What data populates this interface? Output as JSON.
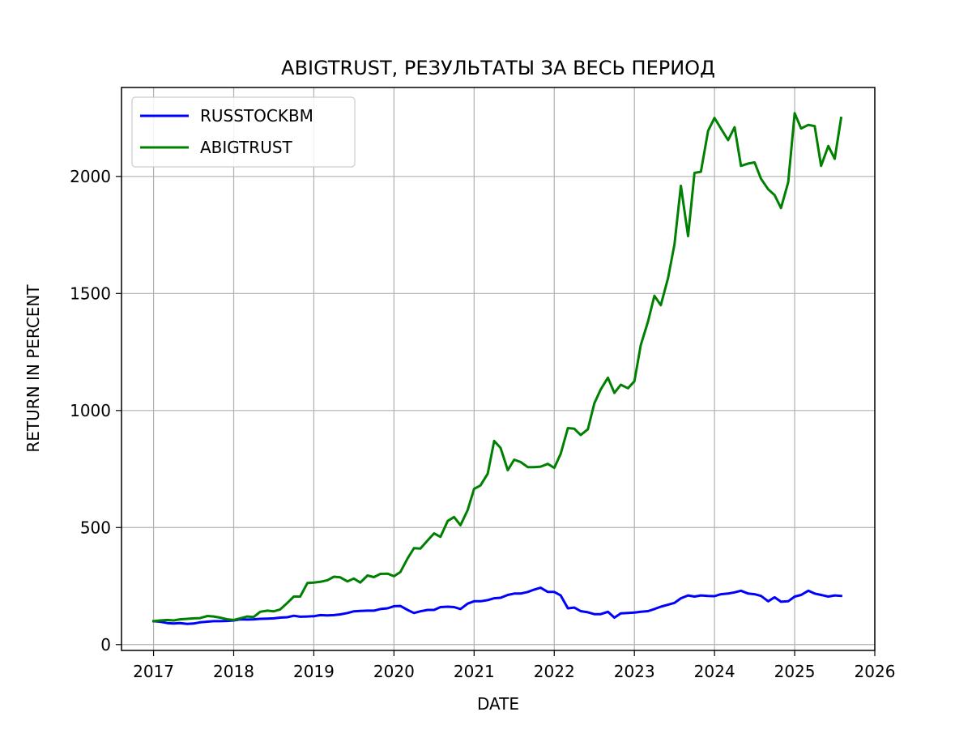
{
  "chart_data": {
    "type": "line",
    "title": "ABIGTRUST, РЕЗУЛЬТАТЫ ЗА ВЕСЬ ПЕРИОД",
    "xlabel": "DATE",
    "ylabel": "RETURN IN PERCENT",
    "xlim": [
      2016.6,
      2026.0
    ],
    "ylim": [
      -25,
      2380
    ],
    "xticks": [
      2017,
      2018,
      2019,
      2020,
      2021,
      2022,
      2023,
      2024,
      2025,
      2026
    ],
    "xtick_labels": [
      "2017",
      "2018",
      "2019",
      "2020",
      "2021",
      "2022",
      "2023",
      "2024",
      "2025",
      "2026"
    ],
    "yticks": [
      0,
      500,
      1000,
      1500,
      2000
    ],
    "ytick_labels": [
      "0",
      "500",
      "1000",
      "1500",
      "2000"
    ],
    "grid": true,
    "legend_position": "top-left",
    "series": [
      {
        "name": "RUSSTOCKBM",
        "color": "#0000ff",
        "points": [
          [
            2017.0,
            100
          ],
          [
            2017.08,
            98
          ],
          [
            2017.17,
            92
          ],
          [
            2017.25,
            90
          ],
          [
            2017.33,
            92
          ],
          [
            2017.42,
            88
          ],
          [
            2017.5,
            90
          ],
          [
            2017.58,
            95
          ],
          [
            2017.67,
            98
          ],
          [
            2017.75,
            100
          ],
          [
            2017.83,
            100
          ],
          [
            2017.92,
            101
          ],
          [
            2018.0,
            103
          ],
          [
            2018.08,
            108
          ],
          [
            2018.17,
            107
          ],
          [
            2018.25,
            108
          ],
          [
            2018.33,
            110
          ],
          [
            2018.42,
            111
          ],
          [
            2018.5,
            112
          ],
          [
            2018.58,
            115
          ],
          [
            2018.67,
            117
          ],
          [
            2018.75,
            123
          ],
          [
            2018.83,
            119
          ],
          [
            2018.92,
            120
          ],
          [
            2019.0,
            121
          ],
          [
            2019.08,
            126
          ],
          [
            2019.17,
            125
          ],
          [
            2019.25,
            126
          ],
          [
            2019.33,
            129
          ],
          [
            2019.42,
            135
          ],
          [
            2019.5,
            142
          ],
          [
            2019.58,
            144
          ],
          [
            2019.67,
            145
          ],
          [
            2019.75,
            145
          ],
          [
            2019.83,
            152
          ],
          [
            2019.92,
            155
          ],
          [
            2020.0,
            164
          ],
          [
            2020.08,
            165
          ],
          [
            2020.17,
            148
          ],
          [
            2020.25,
            135
          ],
          [
            2020.33,
            142
          ],
          [
            2020.42,
            148
          ],
          [
            2020.5,
            148
          ],
          [
            2020.58,
            160
          ],
          [
            2020.67,
            162
          ],
          [
            2020.75,
            160
          ],
          [
            2020.83,
            152
          ],
          [
            2020.92,
            175
          ],
          [
            2021.0,
            185
          ],
          [
            2021.08,
            185
          ],
          [
            2021.17,
            190
          ],
          [
            2021.25,
            198
          ],
          [
            2021.33,
            200
          ],
          [
            2021.42,
            212
          ],
          [
            2021.5,
            218
          ],
          [
            2021.58,
            218
          ],
          [
            2021.67,
            225
          ],
          [
            2021.75,
            235
          ],
          [
            2021.83,
            243
          ],
          [
            2021.92,
            225
          ],
          [
            2022.0,
            225
          ],
          [
            2022.08,
            210
          ],
          [
            2022.17,
            155
          ],
          [
            2022.25,
            158
          ],
          [
            2022.33,
            143
          ],
          [
            2022.42,
            138
          ],
          [
            2022.5,
            130
          ],
          [
            2022.58,
            130
          ],
          [
            2022.67,
            140
          ],
          [
            2022.75,
            115
          ],
          [
            2022.83,
            133
          ],
          [
            2022.92,
            135
          ],
          [
            2023.0,
            137
          ],
          [
            2023.08,
            140
          ],
          [
            2023.17,
            143
          ],
          [
            2023.25,
            152
          ],
          [
            2023.33,
            162
          ],
          [
            2023.42,
            170
          ],
          [
            2023.5,
            178
          ],
          [
            2023.58,
            198
          ],
          [
            2023.67,
            210
          ],
          [
            2023.75,
            205
          ],
          [
            2023.83,
            210
          ],
          [
            2023.92,
            208
          ],
          [
            2024.0,
            207
          ],
          [
            2024.08,
            215
          ],
          [
            2024.17,
            218
          ],
          [
            2024.25,
            223
          ],
          [
            2024.33,
            230
          ],
          [
            2024.42,
            218
          ],
          [
            2024.5,
            215
          ],
          [
            2024.58,
            208
          ],
          [
            2024.67,
            185
          ],
          [
            2024.75,
            202
          ],
          [
            2024.83,
            183
          ],
          [
            2024.92,
            185
          ],
          [
            2025.0,
            205
          ],
          [
            2025.08,
            212
          ],
          [
            2025.17,
            230
          ],
          [
            2025.25,
            218
          ],
          [
            2025.33,
            212
          ],
          [
            2025.42,
            205
          ],
          [
            2025.5,
            210
          ],
          [
            2025.58,
            208
          ]
        ]
      },
      {
        "name": "ABIGTRUST",
        "color": "#008000",
        "points": [
          [
            2017.0,
            100
          ],
          [
            2017.08,
            103
          ],
          [
            2017.17,
            105
          ],
          [
            2017.25,
            103
          ],
          [
            2017.33,
            108
          ],
          [
            2017.42,
            110
          ],
          [
            2017.5,
            112
          ],
          [
            2017.58,
            113
          ],
          [
            2017.67,
            122
          ],
          [
            2017.75,
            120
          ],
          [
            2017.83,
            115
          ],
          [
            2017.92,
            108
          ],
          [
            2018.0,
            105
          ],
          [
            2018.08,
            112
          ],
          [
            2018.17,
            120
          ],
          [
            2018.25,
            118
          ],
          [
            2018.33,
            140
          ],
          [
            2018.42,
            145
          ],
          [
            2018.5,
            142
          ],
          [
            2018.58,
            150
          ],
          [
            2018.67,
            178
          ],
          [
            2018.75,
            205
          ],
          [
            2018.83,
            205
          ],
          [
            2018.92,
            263
          ],
          [
            2019.0,
            265
          ],
          [
            2019.08,
            268
          ],
          [
            2019.17,
            275
          ],
          [
            2019.25,
            290
          ],
          [
            2019.33,
            287
          ],
          [
            2019.42,
            270
          ],
          [
            2019.5,
            282
          ],
          [
            2019.58,
            265
          ],
          [
            2019.67,
            295
          ],
          [
            2019.75,
            288
          ],
          [
            2019.83,
            302
          ],
          [
            2019.92,
            303
          ],
          [
            2020.0,
            292
          ],
          [
            2020.08,
            310
          ],
          [
            2020.17,
            368
          ],
          [
            2020.25,
            412
          ],
          [
            2020.33,
            410
          ],
          [
            2020.42,
            445
          ],
          [
            2020.5,
            475
          ],
          [
            2020.58,
            460
          ],
          [
            2020.67,
            528
          ],
          [
            2020.75,
            545
          ],
          [
            2020.83,
            510
          ],
          [
            2020.92,
            575
          ],
          [
            2021.0,
            665
          ],
          [
            2021.08,
            680
          ],
          [
            2021.17,
            730
          ],
          [
            2021.25,
            870
          ],
          [
            2021.33,
            840
          ],
          [
            2021.42,
            745
          ],
          [
            2021.5,
            790
          ],
          [
            2021.58,
            780
          ],
          [
            2021.67,
            758
          ],
          [
            2021.75,
            758
          ],
          [
            2021.83,
            760
          ],
          [
            2021.92,
            772
          ],
          [
            2022.0,
            755
          ],
          [
            2022.08,
            815
          ],
          [
            2022.17,
            925
          ],
          [
            2022.25,
            922
          ],
          [
            2022.33,
            895
          ],
          [
            2022.42,
            920
          ],
          [
            2022.5,
            1030
          ],
          [
            2022.58,
            1090
          ],
          [
            2022.67,
            1140
          ],
          [
            2022.75,
            1075
          ],
          [
            2022.83,
            1110
          ],
          [
            2022.92,
            1095
          ],
          [
            2023.0,
            1125
          ],
          [
            2023.08,
            1280
          ],
          [
            2023.17,
            1380
          ],
          [
            2023.25,
            1490
          ],
          [
            2023.33,
            1450
          ],
          [
            2023.42,
            1565
          ],
          [
            2023.5,
            1710
          ],
          [
            2023.58,
            1960
          ],
          [
            2023.67,
            1745
          ],
          [
            2023.75,
            2015
          ],
          [
            2023.83,
            2020
          ],
          [
            2023.92,
            2195
          ],
          [
            2024.0,
            2250
          ],
          [
            2024.08,
            2205
          ],
          [
            2024.17,
            2155
          ],
          [
            2024.25,
            2210
          ],
          [
            2024.33,
            2045
          ],
          [
            2024.42,
            2055
          ],
          [
            2024.5,
            2060
          ],
          [
            2024.58,
            1990
          ],
          [
            2024.67,
            1945
          ],
          [
            2024.75,
            1920
          ],
          [
            2024.83,
            1865
          ],
          [
            2024.92,
            1975
          ],
          [
            2025.0,
            2270
          ],
          [
            2025.08,
            2205
          ],
          [
            2025.17,
            2220
          ],
          [
            2025.25,
            2215
          ],
          [
            2025.33,
            2045
          ],
          [
            2025.42,
            2130
          ],
          [
            2025.5,
            2075
          ],
          [
            2025.58,
            2250
          ]
        ]
      }
    ]
  }
}
